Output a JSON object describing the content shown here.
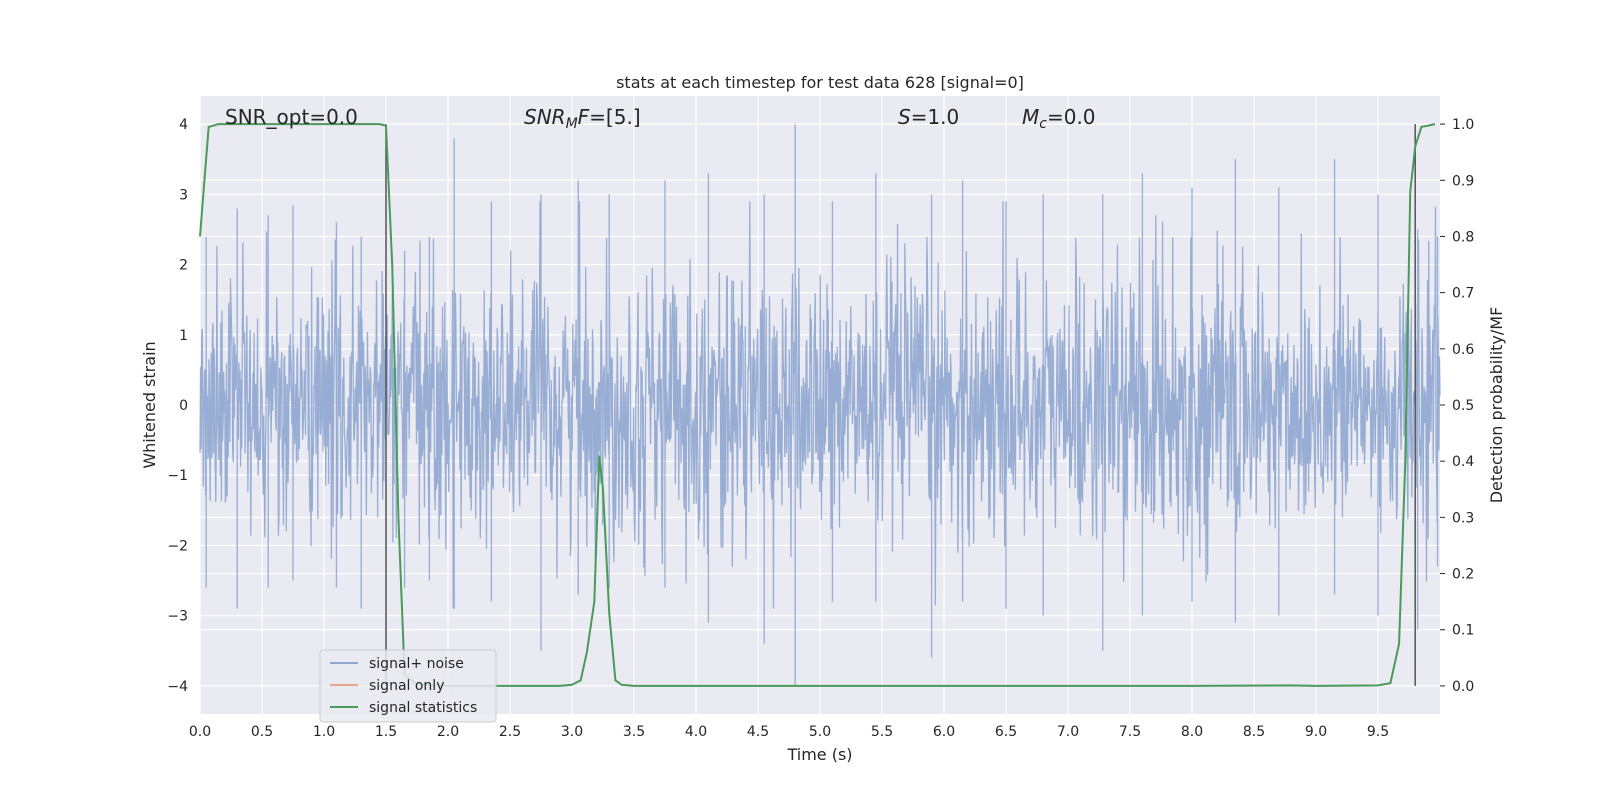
{
  "chart_data": {
    "type": "line",
    "title": "stats at each timestep for test data 628 [signal=0]",
    "xlabel": "Time (s)",
    "ylabel": "Whitened strain",
    "ylabel_right": "Detection probability/MF",
    "xlim": [
      0.0,
      10.0
    ],
    "ylim": [
      -4.4,
      4.4
    ],
    "ylim_right": [
      -0.05,
      1.05
    ],
    "x_ticks": [
      "0.0",
      "0.5",
      "1.0",
      "1.5",
      "2.0",
      "2.5",
      "3.0",
      "3.5",
      "4.0",
      "4.5",
      "5.0",
      "5.5",
      "6.0",
      "6.5",
      "7.0",
      "7.5",
      "8.0",
      "8.5",
      "9.0",
      "9.5"
    ],
    "y_ticks": [
      "4",
      "3",
      "2",
      "1",
      "0",
      "−1",
      "−2",
      "−3",
      "−4"
    ],
    "y_ticks_right": [
      "1.0",
      "0.9",
      "0.8",
      "0.7",
      "0.6",
      "0.5",
      "0.4",
      "0.3",
      "0.2",
      "0.1",
      "0.0"
    ],
    "grid": true,
    "legend_placement": "lower-left",
    "annotations": {
      "snr_opt": "SNR_opt=0.0",
      "snr_mf": "=[5.]",
      "snr_mf_main": "SNR",
      "snr_mf_sub": "M",
      "snr_mf_f": "F",
      "s": "=1.0",
      "s_var": "S",
      "mc": "=0.0",
      "mc_var": "M",
      "mc_sub": "c"
    },
    "series": [
      {
        "name": "signal+ noise",
        "color": "#8fa6cf",
        "note_style": "dense noise trace",
        "envelope_peaks": [
          [
            0.05,
            2.4,
            -2.6
          ],
          [
            0.3,
            2.8,
            -2.9
          ],
          [
            0.55,
            2.7,
            -2.6
          ],
          [
            0.75,
            2.85,
            -2.5
          ],
          [
            1.1,
            2.6,
            -2.6
          ],
          [
            1.3,
            2.4,
            -2.9
          ],
          [
            1.65,
            2.2,
            -2.6
          ],
          [
            1.85,
            2.4,
            -2.5
          ],
          [
            2.05,
            3.8,
            -2.9
          ],
          [
            2.35,
            2.9,
            -2.8
          ],
          [
            2.75,
            3.0,
            -3.5
          ],
          [
            3.05,
            3.2,
            -2.7
          ],
          [
            3.3,
            3.0,
            -2.6
          ],
          [
            3.75,
            3.2,
            -2.6
          ],
          [
            4.1,
            3.3,
            -3.1
          ],
          [
            4.55,
            3.0,
            -3.4
          ],
          [
            4.8,
            4.0,
            -4.0
          ],
          [
            5.1,
            2.9,
            -2.8
          ],
          [
            5.45,
            3.3,
            -2.8
          ],
          [
            5.9,
            3.0,
            -3.6
          ],
          [
            6.15,
            3.2,
            -2.8
          ],
          [
            6.5,
            2.9,
            -2.9
          ],
          [
            6.8,
            3.0,
            -3.0
          ],
          [
            7.28,
            3.0,
            -3.5
          ],
          [
            7.6,
            3.3,
            -3.0
          ],
          [
            8.0,
            3.1,
            -2.8
          ],
          [
            8.35,
            3.5,
            -3.1
          ],
          [
            8.7,
            3.1,
            -3.0
          ],
          [
            9.15,
            3.5,
            -2.7
          ],
          [
            9.5,
            3.0,
            -3.0
          ],
          [
            9.82,
            2.5,
            -3.2
          ],
          [
            9.98,
            2.4,
            -2.3
          ]
        ]
      },
      {
        "name": "signal only",
        "color": "#e8a58a",
        "x": [],
        "y": []
      },
      {
        "name": "signal statistics",
        "color": "#4a9a5a",
        "axis": "right",
        "x": [
          0.0,
          0.07,
          0.15,
          0.3,
          0.6,
          1.0,
          1.3,
          1.45,
          1.5,
          1.55,
          1.6,
          1.65,
          1.75,
          2.0,
          2.5,
          2.9,
          3.0,
          3.07,
          3.12,
          3.18,
          3.22,
          3.25,
          3.3,
          3.35,
          3.4,
          3.5,
          4.0,
          5.0,
          6.0,
          7.0,
          8.0,
          8.8,
          9.0,
          9.5,
          9.6,
          9.67,
          9.72,
          9.76,
          9.8,
          9.85,
          9.9,
          9.96
        ],
        "y": [
          0.8,
          0.995,
          1.0,
          1.0,
          1.0,
          1.0,
          1.0,
          1.0,
          0.997,
          0.75,
          0.3,
          0.02,
          0.003,
          0.0,
          0.0,
          0.0,
          0.002,
          0.01,
          0.06,
          0.15,
          0.41,
          0.35,
          0.13,
          0.01,
          0.002,
          0.0,
          0.0,
          0.0,
          0.0,
          0.0,
          0.0,
          0.001,
          0.0,
          0.001,
          0.005,
          0.075,
          0.4,
          0.88,
          0.96,
          0.995,
          0.997,
          1.0
        ]
      }
    ],
    "vertical_lines_x": [
      1.5,
      9.8
    ]
  }
}
